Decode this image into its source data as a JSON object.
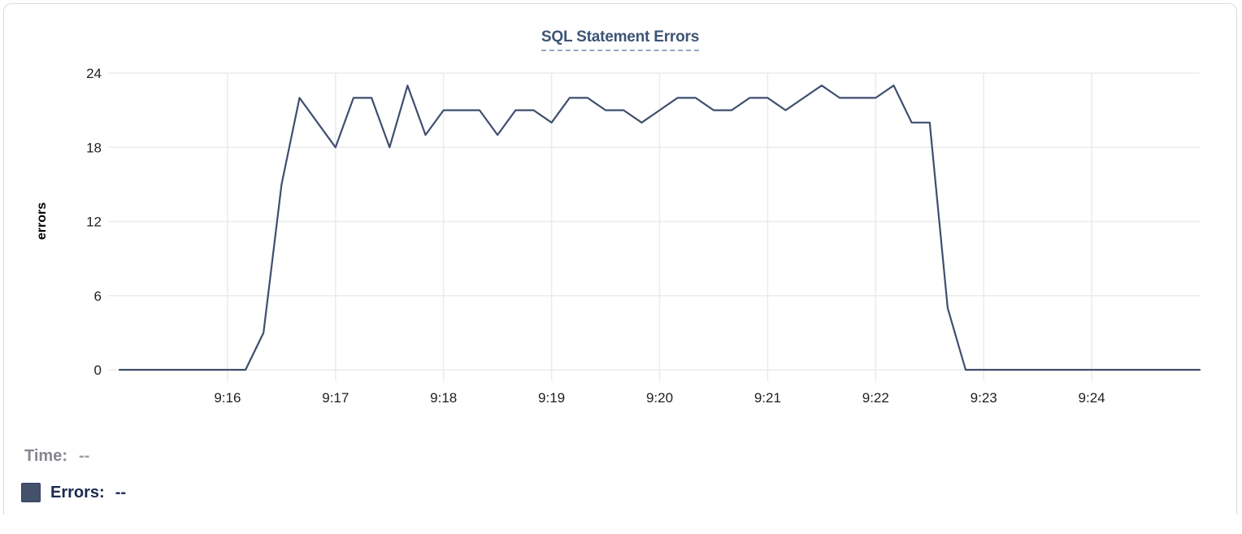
{
  "card": {
    "title": "SQL Statement Errors"
  },
  "chart_data": {
    "type": "line",
    "title": "SQL Statement Errors",
    "xlabel": "",
    "ylabel": "errors",
    "series_name": "Errors",
    "x": [
      "9:15:00",
      "9:15:10",
      "9:15:20",
      "9:15:30",
      "9:15:40",
      "9:15:50",
      "9:16:00",
      "9:16:10",
      "9:16:20",
      "9:16:30",
      "9:16:40",
      "9:16:50",
      "9:17:00",
      "9:17:10",
      "9:17:20",
      "9:17:30",
      "9:17:40",
      "9:17:50",
      "9:18:00",
      "9:18:10",
      "9:18:20",
      "9:18:30",
      "9:18:40",
      "9:18:50",
      "9:19:00",
      "9:19:10",
      "9:19:20",
      "9:19:30",
      "9:19:40",
      "9:19:50",
      "9:20:00",
      "9:20:10",
      "9:20:20",
      "9:20:30",
      "9:20:40",
      "9:20:50",
      "9:21:00",
      "9:21:10",
      "9:21:20",
      "9:21:30",
      "9:21:40",
      "9:21:50",
      "9:22:00",
      "9:22:10",
      "9:22:20",
      "9:22:30",
      "9:22:40",
      "9:22:50",
      "9:23:00",
      "9:23:10",
      "9:23:20",
      "9:23:30",
      "9:23:40",
      "9:23:50",
      "9:24:00",
      "9:24:10",
      "9:24:20",
      "9:24:30",
      "9:24:40",
      "9:24:50",
      "9:25:00"
    ],
    "values": [
      0,
      0,
      0,
      0,
      0,
      0,
      0,
      0,
      3,
      15,
      22,
      20,
      18,
      22,
      22,
      18,
      23,
      19,
      21,
      21,
      21,
      19,
      21,
      21,
      20,
      22,
      22,
      21,
      21,
      20,
      21,
      22,
      22,
      21,
      21,
      22,
      22,
      21,
      22,
      23,
      22,
      22,
      22,
      23,
      20,
      20,
      5,
      0,
      0,
      0,
      0,
      0,
      0,
      0,
      0,
      0,
      0,
      0,
      0,
      0,
      0
    ],
    "xticks": [
      "9:16",
      "9:17",
      "9:18",
      "9:19",
      "9:20",
      "9:21",
      "9:22",
      "9:23",
      "9:24"
    ],
    "yticks": [
      0,
      6,
      12,
      18,
      24
    ],
    "ylim": [
      0,
      24
    ],
    "grid": true,
    "legend_position": "bottom-left",
    "line_color": "#3f4e6d"
  },
  "legend": {
    "time_label": "Time:",
    "time_value": "--",
    "errors_label": "Errors:",
    "errors_value": "--",
    "swatch_color": "#44516b"
  },
  "colors": {
    "grid": "#ebebeb",
    "tick_text": "#1f1f1f",
    "title": "#3d5475",
    "card_border": "#d9d9d9"
  }
}
